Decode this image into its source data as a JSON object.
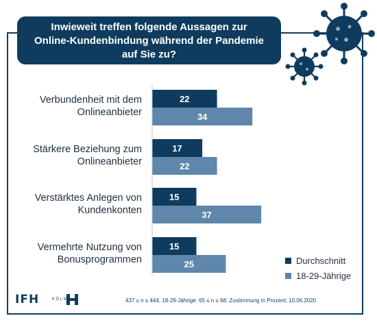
{
  "title": "Inwieweit treffen folgende Aussagen zur Online-Kundenbindung während der Pandemie auf Sie zu?",
  "title_lines": [
    "Inwieweit treffen folgende Aussagen zur",
    "Online-Kundenbindung während der Pandemie",
    "auf Sie zu?"
  ],
  "colors": {
    "frame": "#0f3c5e",
    "durchschnitt": "#0f3c5e",
    "young": "#5f87ab"
  },
  "chart_data": {
    "type": "bar",
    "orientation": "horizontal",
    "categories": [
      [
        "Verbundenheit mit dem",
        "Onlineanbieter"
      ],
      [
        "Stärkere Beziehung zum",
        "Onlineanbieter"
      ],
      [
        "Verstärktes Anlegen von",
        "Kundenkonten"
      ],
      [
        "Vermehrte Nutzung von",
        "Bonusprogrammen"
      ]
    ],
    "series": [
      {
        "name": "Durchschnitt",
        "color": "#0f3c5e",
        "values": [
          22,
          17,
          15,
          15
        ]
      },
      {
        "name": "18-29-Jährige",
        "color": "#5f87ab",
        "values": [
          34,
          22,
          37,
          25
        ]
      }
    ],
    "xlim": [
      0,
      40
    ],
    "legend_position": "bottom-right",
    "grid": false
  },
  "legend": {
    "items": [
      "Durchschnitt",
      "18-29-Jährige"
    ]
  },
  "logo": {
    "text": "IFH",
    "sub": "KÖLN"
  },
  "footnote": "437 ≤ n ≤ 444, 18-29-Jährige: 65 ≤ n ≤ 68; Zustimmung in Prozent; 10.06.2020"
}
